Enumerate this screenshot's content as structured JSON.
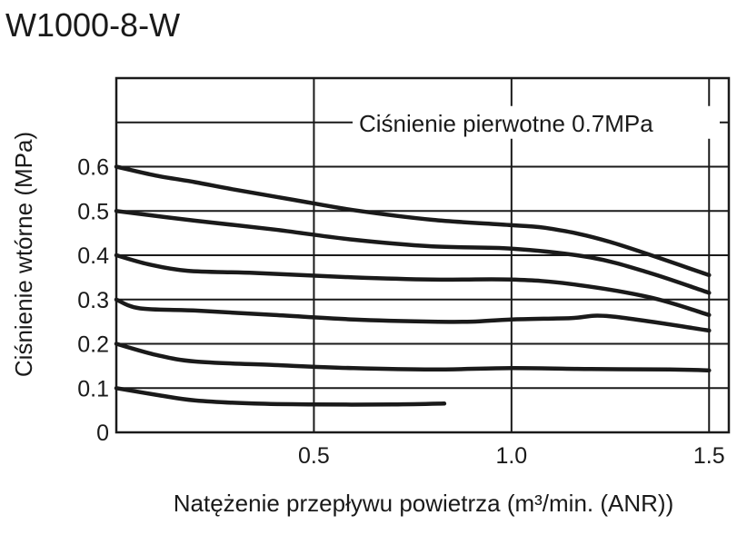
{
  "chart_data": {
    "type": "line",
    "title": "W1000-8-W",
    "xlabel": "Natężenie przepływu powietrza (m³/min. (ANR))",
    "ylabel": "Ciśnienie wtórne  (MPa)",
    "xlim": [
      0,
      1.55
    ],
    "ylim": [
      0,
      0.8
    ],
    "x_ticks": [
      "0.5",
      "1.0",
      "1.5"
    ],
    "x_tick_values": [
      0.5,
      1.0,
      1.5
    ],
    "y_ticks": [
      "0",
      "0.1",
      "0.2",
      "0.3",
      "0.4",
      "0.5",
      "0.6"
    ],
    "y_tick_values": [
      0,
      0.1,
      0.2,
      0.3,
      0.4,
      0.5,
      0.6
    ],
    "grid": true,
    "annotation": {
      "text": "Ciśnienie pierwotne 0.7MPa",
      "y": 0.7
    },
    "series": [
      {
        "x": [
          0,
          0.1,
          0.2,
          0.3,
          0.45,
          0.6,
          0.8,
          1.0,
          1.1,
          1.25,
          1.5
        ],
        "y": [
          0.6,
          0.58,
          0.565,
          0.548,
          0.525,
          0.502,
          0.48,
          0.468,
          0.46,
          0.43,
          0.355
        ]
      },
      {
        "x": [
          0,
          0.2,
          0.4,
          0.6,
          0.8,
          1.0,
          1.2,
          1.35,
          1.5
        ],
        "y": [
          0.5,
          0.478,
          0.458,
          0.435,
          0.42,
          0.415,
          0.395,
          0.36,
          0.315
        ]
      },
      {
        "x": [
          0,
          0.08,
          0.18,
          0.35,
          0.6,
          0.8,
          1.0,
          1.15,
          1.35,
          1.5
        ],
        "y": [
          0.4,
          0.38,
          0.365,
          0.36,
          0.35,
          0.345,
          0.345,
          0.335,
          0.305,
          0.265
        ]
      },
      {
        "x": [
          0,
          0.06,
          0.2,
          0.4,
          0.6,
          0.8,
          0.9,
          1.0,
          1.15,
          1.25,
          1.5
        ],
        "y": [
          0.3,
          0.28,
          0.275,
          0.265,
          0.255,
          0.25,
          0.25,
          0.255,
          0.258,
          0.262,
          0.23
        ]
      },
      {
        "x": [
          0,
          0.1,
          0.2,
          0.4,
          0.6,
          0.8,
          1.0,
          1.2,
          1.4,
          1.5
        ],
        "y": [
          0.2,
          0.175,
          0.16,
          0.152,
          0.145,
          0.142,
          0.145,
          0.143,
          0.142,
          0.14
        ]
      },
      {
        "x": [
          0,
          0.1,
          0.2,
          0.35,
          0.5,
          0.7,
          0.83
        ],
        "y": [
          0.1,
          0.085,
          0.072,
          0.065,
          0.063,
          0.063,
          0.065
        ]
      }
    ]
  }
}
